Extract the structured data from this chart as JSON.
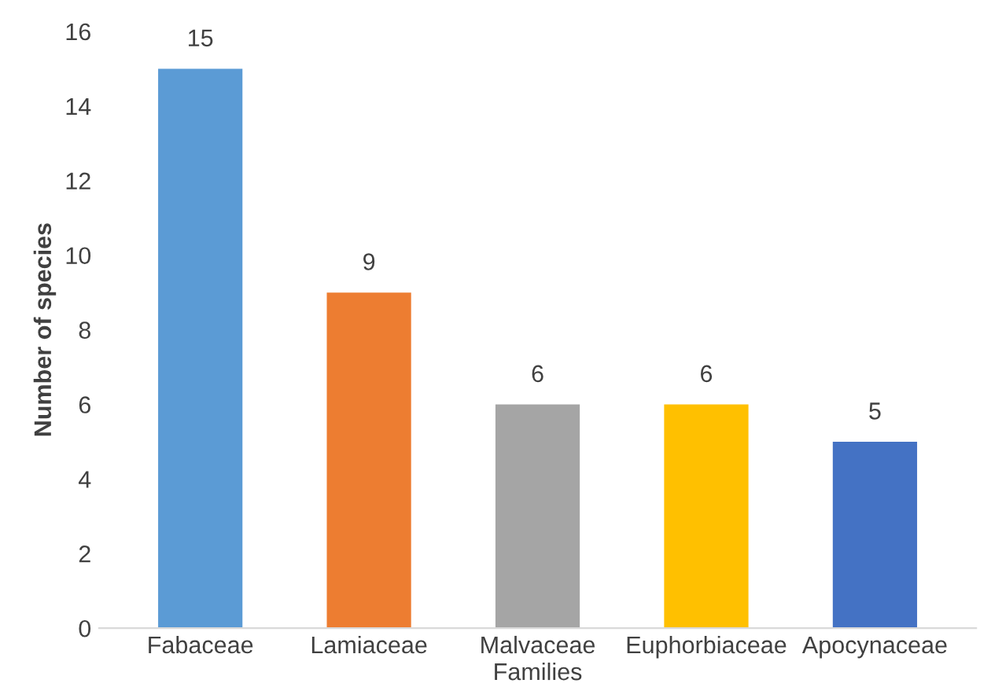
{
  "chart_data": {
    "type": "bar",
    "xlabel": "Families",
    "ylabel": "Number of species",
    "categories": [
      "Fabaceae",
      "Lamiaceae",
      "Malvaceae",
      "Euphorbiaceae",
      "Apocynaceae"
    ],
    "values": [
      15,
      9,
      6,
      6,
      5
    ],
    "colors": [
      "#5b9bd5",
      "#ed7d31",
      "#a5a5a5",
      "#ffc000",
      "#4472c4"
    ],
    "ylim": [
      0,
      16
    ],
    "yticks": [
      0,
      2,
      4,
      6,
      8,
      10,
      12,
      14,
      16
    ],
    "data_labels": true
  }
}
